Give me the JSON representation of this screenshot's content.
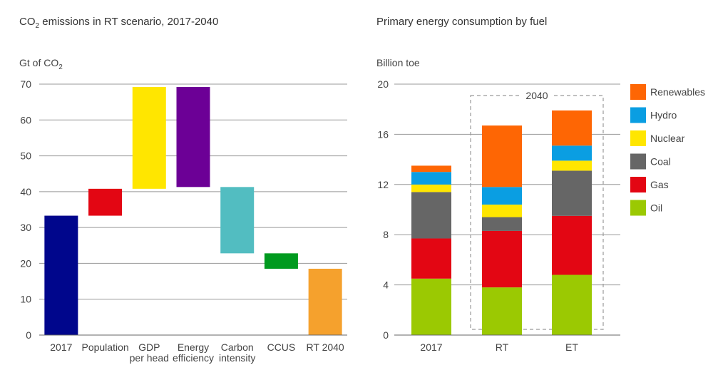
{
  "chart_data": [
    {
      "type": "waterfall",
      "title_pre": "CO",
      "title_sub": "2",
      "title_post": " emissions in RT scenario, 2017-2040",
      "ylabel_pre": "Gt of CO",
      "ylabel_sub": "2",
      "ylim": [
        0,
        70
      ],
      "yticks": [
        "0",
        "10",
        "20",
        "30",
        "40",
        "50",
        "60",
        "70"
      ],
      "grid": true,
      "bars": [
        {
          "label_lines": [
            "2017"
          ],
          "start": 0,
          "end": 33.3,
          "color": "#00068c"
        },
        {
          "label_lines": [
            "Population"
          ],
          "start": 33.3,
          "end": 40.8,
          "color": "#e30613"
        },
        {
          "label_lines": [
            "GDP",
            "per head"
          ],
          "start": 40.8,
          "end": 69.2,
          "color": "#ffe600"
        },
        {
          "label_lines": [
            "Energy",
            "efficiency"
          ],
          "start": 69.2,
          "end": 41.3,
          "color": "#6c0096"
        },
        {
          "label_lines": [
            "Carbon",
            "intensity"
          ],
          "start": 41.3,
          "end": 22.8,
          "color": "#52bdc1"
        },
        {
          "label_lines": [
            "CCUS"
          ],
          "start": 22.8,
          "end": 18.5,
          "color": "#009a1f"
        },
        {
          "label_lines": [
            "RT 2040"
          ],
          "start": 0,
          "end": 18.5,
          "color": "#f5a12d"
        }
      ]
    },
    {
      "type": "stacked-bar",
      "title": "Primary energy consumption by fuel",
      "ylabel": "Billion toe",
      "ylim": [
        0,
        20
      ],
      "yticks": [
        "0",
        "4",
        "8",
        "12",
        "16",
        "20"
      ],
      "grid": true,
      "categories": [
        "2017",
        "RT",
        "ET"
      ],
      "group_label": "2040",
      "group_categories": [
        "RT",
        "ET"
      ],
      "legend_position": "right",
      "series": [
        {
          "name": "Oil",
          "color": "#9bc902",
          "values": [
            4.5,
            3.8,
            4.8
          ]
        },
        {
          "name": "Gas",
          "color": "#e30613",
          "values": [
            3.2,
            4.5,
            4.7
          ]
        },
        {
          "name": "Coal",
          "color": "#666666",
          "values": [
            3.7,
            1.1,
            3.6
          ]
        },
        {
          "name": "Nuclear",
          "color": "#ffe600",
          "values": [
            0.6,
            1.0,
            0.8
          ]
        },
        {
          "name": "Hydro",
          "color": "#0a9ee2",
          "values": [
            1.0,
            1.4,
            1.2
          ]
        },
        {
          "name": "Renewables",
          "color": "#fe6604",
          "values": [
            0.5,
            4.9,
            2.8
          ]
        }
      ],
      "legend_order": [
        "Renewables",
        "Hydro",
        "Nuclear",
        "Coal",
        "Gas",
        "Oil"
      ]
    }
  ]
}
